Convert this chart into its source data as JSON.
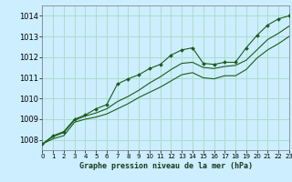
{
  "title": "Graphe pression niveau de la mer (hPa)",
  "background_color": "#cceeff",
  "grid_color": "#aaddcc",
  "line_color": "#1a5c1a",
  "xlim": [
    0,
    23
  ],
  "ylim": [
    1007.5,
    1014.5
  ],
  "xticks": [
    0,
    1,
    2,
    3,
    4,
    5,
    6,
    7,
    8,
    9,
    10,
    11,
    12,
    13,
    14,
    15,
    16,
    17,
    18,
    19,
    20,
    21,
    22,
    23
  ],
  "yticks": [
    1008,
    1009,
    1010,
    1011,
    1012,
    1013,
    1014
  ],
  "series": [
    {
      "x": [
        0,
        1,
        2,
        3,
        4,
        5,
        6,
        7,
        8,
        9,
        10,
        11,
        12,
        13,
        14,
        15,
        16,
        17,
        18,
        19,
        20,
        21,
        22,
        23
      ],
      "y": [
        1007.8,
        1008.2,
        1008.4,
        1009.0,
        1009.2,
        1009.5,
        1009.7,
        1010.7,
        1010.95,
        1011.15,
        1011.45,
        1011.65,
        1012.1,
        1012.35,
        1012.45,
        1011.7,
        1011.65,
        1011.75,
        1011.75,
        1012.45,
        1013.05,
        1013.55,
        1013.85,
        1014.0
      ],
      "marker": true
    },
    {
      "x": [
        0,
        1,
        2,
        3,
        4,
        5,
        6,
        7,
        8,
        9,
        10,
        11,
        12,
        13,
        14,
        15,
        16,
        17,
        18,
        19,
        20,
        21,
        22,
        23
      ],
      "y": [
        1007.8,
        1008.15,
        1008.35,
        1008.95,
        1009.15,
        1009.3,
        1009.5,
        1009.85,
        1010.1,
        1010.4,
        1010.75,
        1011.05,
        1011.4,
        1011.7,
        1011.75,
        1011.5,
        1011.45,
        1011.55,
        1011.6,
        1011.85,
        1012.35,
        1012.85,
        1013.15,
        1013.5
      ],
      "marker": false
    },
    {
      "x": [
        0,
        1,
        2,
        3,
        4,
        5,
        6,
        7,
        8,
        9,
        10,
        11,
        12,
        13,
        14,
        15,
        16,
        17,
        18,
        19,
        20,
        21,
        22,
        23
      ],
      "y": [
        1007.8,
        1008.05,
        1008.2,
        1008.85,
        1009.0,
        1009.1,
        1009.25,
        1009.5,
        1009.75,
        1010.05,
        1010.3,
        1010.55,
        1010.85,
        1011.15,
        1011.25,
        1011.0,
        1010.95,
        1011.1,
        1011.1,
        1011.4,
        1011.95,
        1012.35,
        1012.65,
        1013.0
      ],
      "marker": false
    }
  ]
}
